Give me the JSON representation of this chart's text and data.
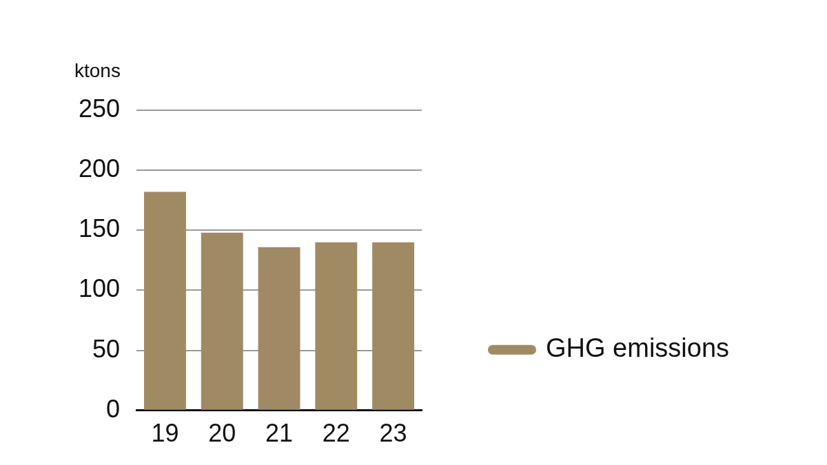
{
  "chart_data": {
    "type": "bar",
    "ylabel": "ktons",
    "categories": [
      "19",
      "20",
      "21",
      "22",
      "23"
    ],
    "series": [
      {
        "name": "GHG emissions",
        "color": "#a08a63",
        "values": [
          182,
          148,
          136,
          140,
          140
        ]
      }
    ],
    "ylim": [
      0,
      250
    ],
    "yticks": [
      0,
      50,
      100,
      150,
      200,
      250
    ],
    "grid": "y",
    "legend": "right"
  }
}
